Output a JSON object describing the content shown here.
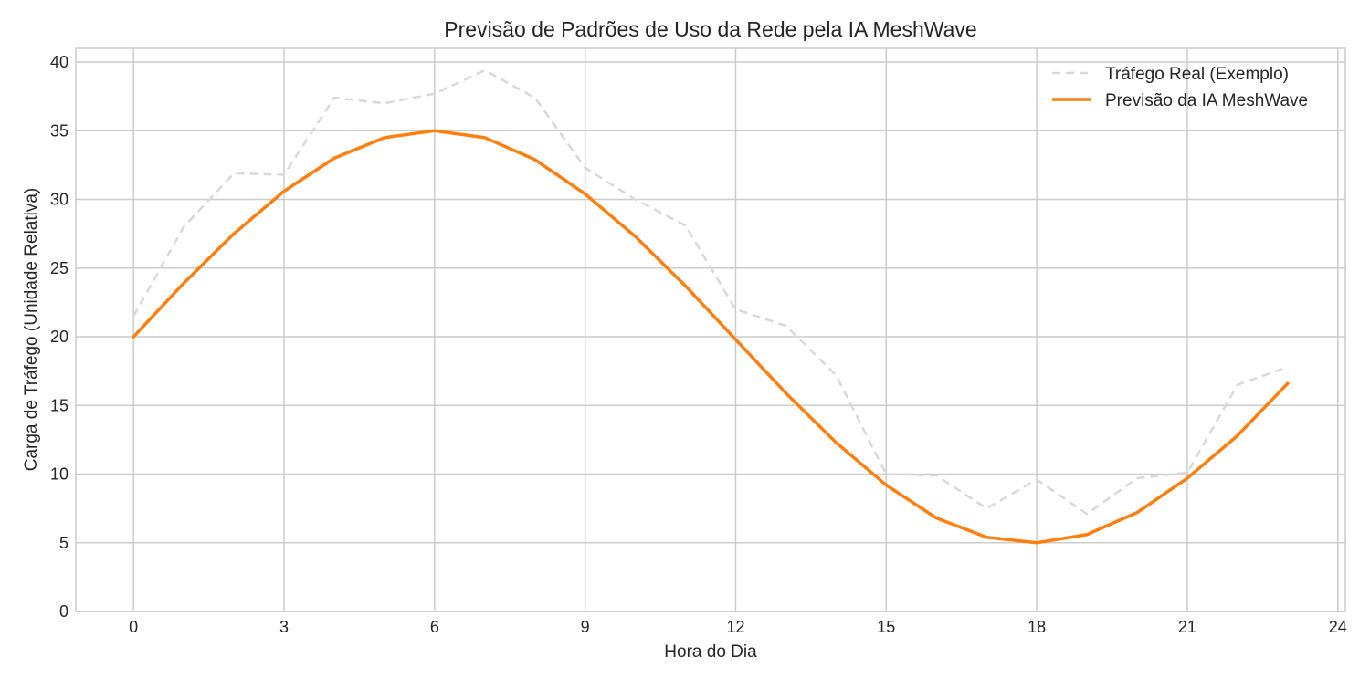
{
  "chart_data": {
    "type": "line",
    "title": "Previsão de Padrões de Uso da Rede pela IA MeshWave",
    "xlabel": "Hora do Dia",
    "ylabel": "Carga de Tráfego (Unidade Relativa)",
    "xlim": [
      -1.15,
      24.15
    ],
    "ylim": [
      0,
      41
    ],
    "xticks": [
      0,
      3,
      6,
      9,
      12,
      15,
      18,
      21,
      24
    ],
    "yticks": [
      0,
      5,
      10,
      15,
      20,
      25,
      30,
      35,
      40
    ],
    "grid": true,
    "legend_position": "top-right",
    "x": [
      0,
      1,
      2,
      3,
      4,
      5,
      6,
      7,
      8,
      9,
      10,
      11,
      12,
      13,
      14,
      15,
      16,
      17,
      18,
      19,
      20,
      21,
      22,
      23
    ],
    "series": [
      {
        "name": "Tráfego Real (Exemplo)",
        "style": "dashed",
        "color": "#d9d9d9",
        "values": [
          21.5,
          28.0,
          31.9,
          31.8,
          37.4,
          37.0,
          37.7,
          39.4,
          37.4,
          32.3,
          30.0,
          28.1,
          22.0,
          20.8,
          17.2,
          10.0,
          9.9,
          7.5,
          9.6,
          7.1,
          9.7,
          10.1,
          16.5,
          17.8
        ]
      },
      {
        "name": "Previsão da IA MeshWave",
        "style": "solid",
        "color": "#ff7f0e",
        "values": [
          20.0,
          23.9,
          27.5,
          30.6,
          33.0,
          34.5,
          35.0,
          34.5,
          32.9,
          30.4,
          27.3,
          23.7,
          19.8,
          15.9,
          12.3,
          9.2,
          6.8,
          5.4,
          5.0,
          5.6,
          7.2,
          9.7,
          12.8,
          16.6
        ]
      }
    ]
  }
}
